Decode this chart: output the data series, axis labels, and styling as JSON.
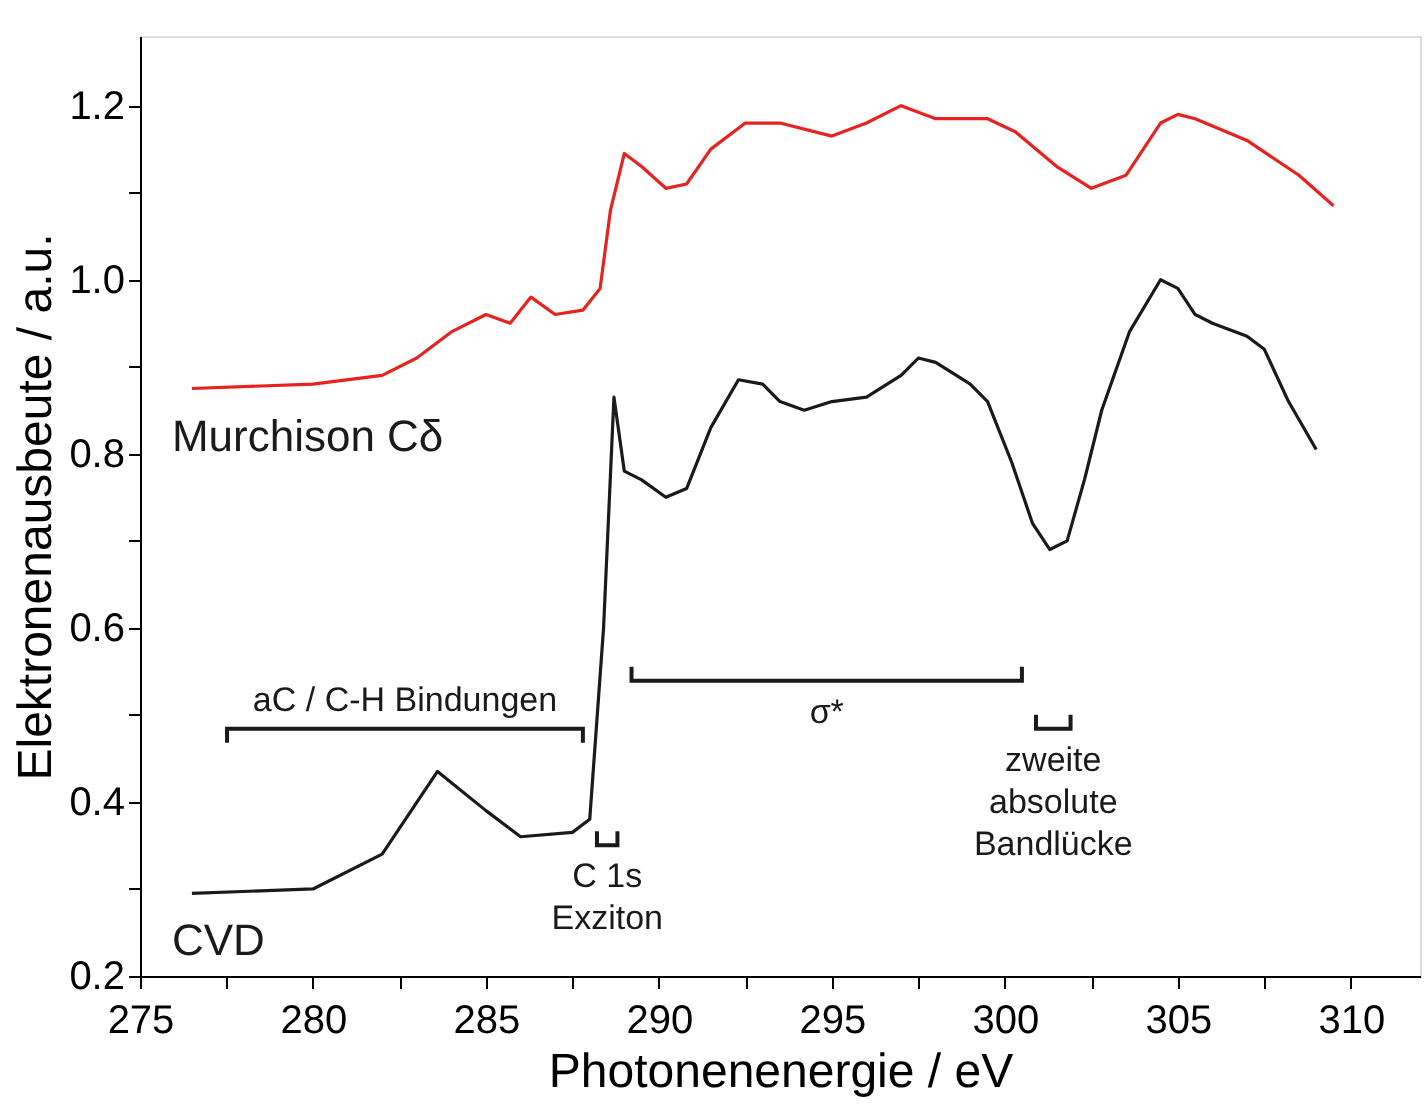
{
  "chart_data": {
    "type": "line",
    "xlabel": "Photonenenergie / eV",
    "ylabel": "Elektronenausbeute / a.u.",
    "xlim": [
      275,
      312
    ],
    "ylim": [
      0.2,
      1.28
    ],
    "xticks": [
      275,
      {
        "value": 277.5,
        "label": null
      },
      280,
      {
        "value": 282.5,
        "label": null
      },
      285,
      {
        "value": 287.5,
        "label": null
      },
      290,
      {
        "value": 292.5,
        "label": null
      },
      295,
      {
        "value": 297.5,
        "label": null
      },
      300,
      {
        "value": 302.5,
        "label": null
      },
      305,
      {
        "value": 307.5,
        "label": null
      },
      310
    ],
    "yticks": [
      {
        "value": 0.2,
        "label": "0.2"
      },
      {
        "value": 0.3,
        "label": null
      },
      {
        "value": 0.4,
        "label": "0.4"
      },
      {
        "value": 0.5,
        "label": null
      },
      {
        "value": 0.6,
        "label": "0.6"
      },
      {
        "value": 0.7,
        "label": null
      },
      {
        "value": 0.8,
        "label": "0.8"
      },
      {
        "value": 0.9,
        "label": null
      },
      {
        "value": 1.0,
        "label": "1.0"
      },
      {
        "value": 1.1,
        "label": null
      },
      {
        "value": 1.2,
        "label": "1.2"
      }
    ],
    "grid": false,
    "marker": "none",
    "line_style": "solid",
    "series": [
      {
        "name": "Murchison Cδ",
        "color": "#e8231f",
        "x": [
          276.5,
          280,
          282,
          283,
          284,
          285,
          285.7,
          286.3,
          287,
          287.8,
          288.3,
          288.6,
          289,
          289.5,
          290.2,
          290.8,
          291.5,
          292.5,
          293.5,
          295,
          296,
          297,
          298,
          299.5,
          300.3,
          301.5,
          302.5,
          303.5,
          304.5,
          305,
          305.5,
          307,
          308.5,
          309.5
        ],
        "values": [
          0.875,
          0.88,
          0.89,
          0.91,
          0.94,
          0.96,
          0.95,
          0.98,
          0.96,
          0.965,
          0.99,
          1.08,
          1.145,
          1.13,
          1.105,
          1.11,
          1.15,
          1.18,
          1.18,
          1.165,
          1.18,
          1.2,
          1.185,
          1.185,
          1.17,
          1.13,
          1.105,
          1.12,
          1.18,
          1.19,
          1.185,
          1.16,
          1.12,
          1.085
        ]
      },
      {
        "name": "CVD",
        "color": "#1a1a1a",
        "x": [
          276.5,
          280,
          282,
          283.6,
          285,
          286,
          287.5,
          288,
          288.4,
          288.7,
          289,
          289.5,
          290.2,
          290.8,
          291.5,
          292.3,
          293,
          293.5,
          294.2,
          295,
          296,
          297,
          297.5,
          298,
          299,
          299.5,
          300.2,
          300.8,
          301.3,
          301.8,
          302.3,
          302.8,
          303.6,
          304.5,
          305,
          305.5,
          306,
          307,
          307.5,
          308.2,
          309
        ],
        "values": [
          0.295,
          0.3,
          0.34,
          0.435,
          0.39,
          0.36,
          0.365,
          0.38,
          0.6,
          0.865,
          0.78,
          0.77,
          0.75,
          0.76,
          0.83,
          0.885,
          0.88,
          0.86,
          0.85,
          0.86,
          0.865,
          0.89,
          0.91,
          0.905,
          0.88,
          0.86,
          0.79,
          0.72,
          0.69,
          0.7,
          0.77,
          0.85,
          0.94,
          1.0,
          0.99,
          0.96,
          0.95,
          0.935,
          0.92,
          0.86,
          0.805
        ]
      }
    ],
    "annotations": [
      "aC / C-H Bindungen",
      "σ*",
      "C 1s\nExziton",
      "zweite\nabsolute\nBandlücke"
    ]
  }
}
